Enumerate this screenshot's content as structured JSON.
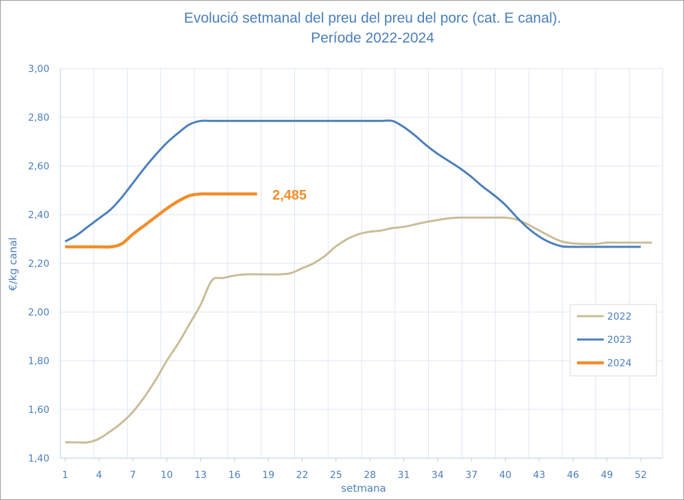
{
  "chart_data": {
    "type": "line",
    "title": "Evolució setmanal del preu del preu del porc (cat. E canal).",
    "subtitle": "Període 2022-2024",
    "xlabel": "setmana",
    "ylabel": "€/kg canal",
    "xlim": [
      1,
      53
    ],
    "ylim": [
      1.4,
      3.0
    ],
    "x_ticks": [
      1,
      4,
      7,
      10,
      13,
      16,
      19,
      22,
      25,
      28,
      31,
      34,
      37,
      40,
      43,
      46,
      49,
      52
    ],
    "y_ticks": [
      1.4,
      1.6,
      1.8,
      2.0,
      2.2,
      2.4,
      2.6,
      2.8,
      3.0
    ],
    "y_tick_labels": [
      "1,40",
      "1,60",
      "1,80",
      "2,00",
      "2,20",
      "2,40",
      "2,60",
      "2,80",
      "3,00"
    ],
    "grid": true,
    "legend_position": "right",
    "annotation": "2,485",
    "series": [
      {
        "name": "2022",
        "color": "#c9bc97",
        "stroke": 3,
        "x": [
          1,
          2,
          3,
          4,
          5,
          6,
          7,
          8,
          9,
          10,
          11,
          12,
          13,
          14,
          15,
          16,
          17,
          18,
          19,
          20,
          21,
          22,
          23,
          24,
          25,
          26,
          27,
          28,
          29,
          30,
          31,
          32,
          33,
          34,
          35,
          36,
          37,
          38,
          39,
          40,
          41,
          42,
          43,
          44,
          45,
          46,
          47,
          48,
          49,
          50,
          51,
          52,
          53
        ],
        "y": [
          1.465,
          1.465,
          1.465,
          1.48,
          1.51,
          1.545,
          1.59,
          1.65,
          1.72,
          1.8,
          1.87,
          1.95,
          2.03,
          2.13,
          2.14,
          2.15,
          2.155,
          2.155,
          2.155,
          2.155,
          2.16,
          2.18,
          2.2,
          2.23,
          2.27,
          2.3,
          2.32,
          2.33,
          2.335,
          2.345,
          2.35,
          2.36,
          2.37,
          2.378,
          2.385,
          2.388,
          2.388,
          2.388,
          2.388,
          2.388,
          2.38,
          2.36,
          2.335,
          2.31,
          2.29,
          2.282,
          2.28,
          2.28,
          2.285,
          2.285,
          2.285,
          2.285,
          2.285
        ]
      },
      {
        "name": "2023",
        "color": "#4a7ebb",
        "stroke": 3,
        "x": [
          1,
          2,
          3,
          4,
          5,
          6,
          7,
          8,
          9,
          10,
          11,
          12,
          13,
          14,
          15,
          16,
          17,
          18,
          19,
          20,
          21,
          22,
          23,
          24,
          25,
          26,
          27,
          28,
          29,
          30,
          31,
          32,
          33,
          34,
          35,
          36,
          37,
          38,
          39,
          40,
          41,
          42,
          43,
          44,
          45,
          46,
          47,
          48,
          49,
          50,
          51,
          52
        ],
        "y": [
          2.29,
          2.315,
          2.35,
          2.385,
          2.42,
          2.47,
          2.53,
          2.59,
          2.645,
          2.695,
          2.735,
          2.77,
          2.785,
          2.785,
          2.785,
          2.785,
          2.785,
          2.785,
          2.785,
          2.785,
          2.785,
          2.785,
          2.785,
          2.785,
          2.785,
          2.785,
          2.785,
          2.785,
          2.785,
          2.785,
          2.76,
          2.725,
          2.685,
          2.65,
          2.62,
          2.59,
          2.555,
          2.515,
          2.48,
          2.44,
          2.39,
          2.345,
          2.31,
          2.285,
          2.27,
          2.268,
          2.268,
          2.268,
          2.268,
          2.268,
          2.268,
          2.268
        ]
      },
      {
        "name": "2024",
        "color": "#f28e2b",
        "stroke": 4.5,
        "x": [
          1,
          2,
          3,
          4,
          5,
          6,
          7,
          8,
          9,
          10,
          11,
          12,
          13,
          14,
          15,
          16,
          17,
          18
        ],
        "y": [
          2.268,
          2.268,
          2.268,
          2.268,
          2.268,
          2.28,
          2.32,
          2.355,
          2.39,
          2.425,
          2.455,
          2.478,
          2.485,
          2.485,
          2.485,
          2.485,
          2.485,
          2.485
        ]
      }
    ]
  }
}
